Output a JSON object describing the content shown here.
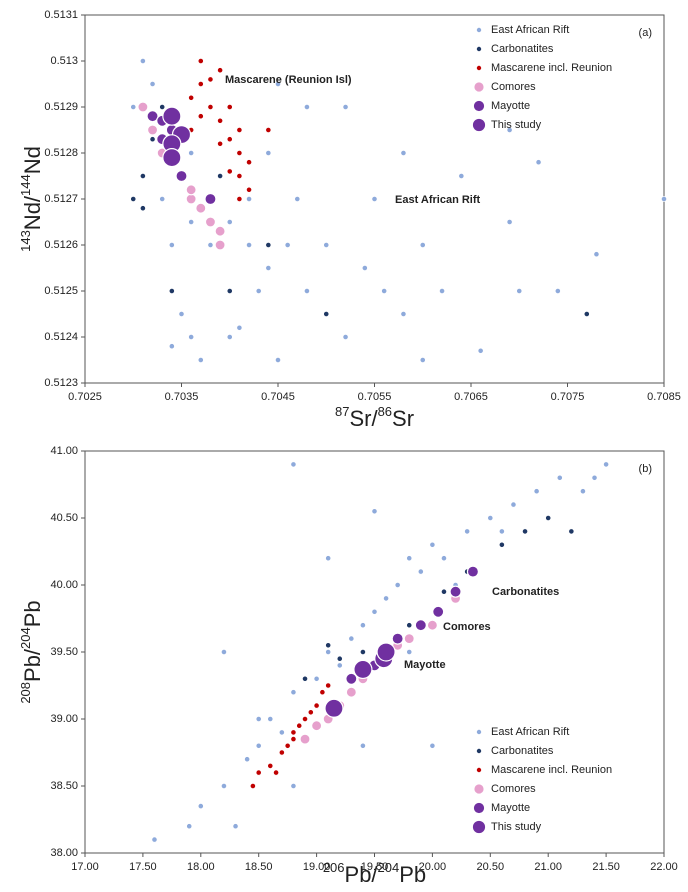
{
  "chart_data": [
    {
      "type": "scatter",
      "label": "(a)",
      "xlabel": [
        "87",
        "Sr/",
        "86",
        "Sr"
      ],
      "ylabel": [
        "143",
        "Nd/",
        "144",
        "Nd"
      ],
      "xlim": [
        0.7025,
        0.7085
      ],
      "xticks": [
        0.7025,
        0.7035,
        0.7045,
        0.7055,
        0.7065,
        0.7075,
        0.7085
      ],
      "ylim": [
        0.5123,
        0.5131
      ],
      "yticks": [
        0.5123,
        0.5124,
        0.5125,
        0.5126,
        0.5127,
        0.5128,
        0.5129,
        0.513,
        0.5131
      ],
      "legend": "upper right",
      "annotations": [
        {
          "text": "Mascarene (Reunion Isl)",
          "color": "#c00000"
        },
        {
          "text": "East African Rift",
          "color": "#8eaadb"
        }
      ],
      "series": [
        {
          "name": "East African Rift",
          "color": "#8eaadb",
          "x": [
            0.7031,
            0.7032,
            0.7034,
            0.7036,
            0.7038,
            0.704,
            0.7042,
            0.7044,
            0.7046,
            0.7048,
            0.705,
            0.7052,
            0.7054,
            0.7056,
            0.7058,
            0.706,
            0.7062,
            0.7066,
            0.707,
            0.7074,
            0.7078,
            0.7085,
            0.7072,
            0.7069,
            0.7064,
            0.7058,
            0.7052,
            0.7048,
            0.7045,
            0.7055,
            0.706,
            0.7069,
            0.704,
            0.7037,
            0.7035,
            0.7034,
            0.7036,
            0.7041,
            0.7043,
            0.7047,
            0.7044,
            0.7039,
            0.7033,
            0.7034,
            0.7045,
            0.705,
            0.7042,
            0.7038,
            0.7036,
            0.703
          ],
          "y": [
            0.513,
            0.51295,
            0.51285,
            0.5128,
            0.5127,
            0.51265,
            0.5126,
            0.51255,
            0.5126,
            0.5125,
            0.51245,
            0.5124,
            0.51255,
            0.5125,
            0.51245,
            0.51235,
            0.5125,
            0.51237,
            0.5125,
            0.5125,
            0.51258,
            0.5127,
            0.51278,
            0.51285,
            0.51275,
            0.5128,
            0.5129,
            0.5129,
            0.51295,
            0.5127,
            0.5126,
            0.51265,
            0.5124,
            0.51235,
            0.51245,
            0.5126,
            0.5124,
            0.51242,
            0.5125,
            0.5127,
            0.5128,
            0.51275,
            0.5127,
            0.51238,
            0.51235,
            0.5126,
            0.5127,
            0.5126,
            0.51265,
            0.5129
          ]
        },
        {
          "name": "Carbonatites",
          "color": "#1f3864",
          "x": [
            0.703,
            0.7031,
            0.7032,
            0.7033,
            0.7031,
            0.7034,
            0.7038,
            0.704,
            0.7044,
            0.705,
            0.7077,
            0.7039,
            0.7036,
            0.7033
          ],
          "y": [
            0.5127,
            0.51275,
            0.51283,
            0.5128,
            0.51268,
            0.5125,
            0.51265,
            0.5125,
            0.5126,
            0.51245,
            0.51245,
            0.51275,
            0.51272,
            0.5129
          ]
        },
        {
          "name": "Mascarene incl. Reunion",
          "color": "#c00000",
          "x": [
            0.7036,
            0.7037,
            0.7038,
            0.7036,
            0.7037,
            0.7038,
            0.7039,
            0.704,
            0.7041,
            0.704,
            0.7041,
            0.7042,
            0.7041,
            0.704,
            0.7042,
            0.7041,
            0.7039,
            0.7044,
            0.7037,
            0.7039
          ],
          "y": [
            0.51292,
            0.51295,
            0.5129,
            0.51285,
            0.51288,
            0.51296,
            0.51287,
            0.51283,
            0.5128,
            0.51276,
            0.51275,
            0.51278,
            0.51285,
            0.5129,
            0.51272,
            0.5127,
            0.51282,
            0.51285,
            0.513,
            0.51298
          ]
        },
        {
          "name": "Comores",
          "color": "#e6a0cc",
          "x": [
            0.7031,
            0.7032,
            0.7033,
            0.7034,
            0.7035,
            0.7036,
            0.7037,
            0.7038,
            0.7039,
            0.7039,
            0.7036,
            0.7032
          ],
          "y": [
            0.5129,
            0.51285,
            0.5128,
            0.51282,
            0.51275,
            0.5127,
            0.51268,
            0.51265,
            0.5126,
            0.51263,
            0.51272,
            0.51288
          ]
        },
        {
          "name": "Mayotte",
          "color": "#7030a0",
          "x": [
            0.7032,
            0.7033,
            0.7034,
            0.7033,
            0.7035,
            0.7038,
            0.7034
          ],
          "y": [
            0.51288,
            0.51283,
            0.5128,
            0.51287,
            0.51275,
            0.5127,
            0.51285
          ]
        },
        {
          "name": "This study",
          "color": "#7030a0",
          "x": [
            0.7034,
            0.7035,
            0.7034,
            0.7034
          ],
          "y": [
            0.51288,
            0.51284,
            0.51282,
            0.51279
          ]
        }
      ]
    },
    {
      "type": "scatter",
      "label": "(b)",
      "xlabel": [
        "206",
        "Pb/",
        "204",
        "Pb"
      ],
      "ylabel": [
        "208",
        "Pb/",
        "204",
        "Pb"
      ],
      "xlim": [
        17,
        22
      ],
      "xticks": [
        {
          "value": 17,
          "label": "17.00"
        },
        {
          "value": 17.5,
          "label": "17.50"
        },
        {
          "value": 18,
          "label": "18.00"
        },
        {
          "value": 18.5,
          "label": "18.50"
        },
        {
          "value": 19,
          "label": "19.00"
        },
        {
          "value": 19.5,
          "label": "19.50"
        },
        {
          "value": 20,
          "label": "20.00"
        },
        {
          "value": 20.5,
          "label": "20.50"
        },
        {
          "value": 21,
          "label": "21.00"
        },
        {
          "value": 21.5,
          "label": "21.50"
        },
        {
          "value": 22,
          "label": "22.00"
        }
      ],
      "ylim": [
        38,
        41
      ],
      "yticks": [
        {
          "value": 38,
          "label": "38.00"
        },
        {
          "value": 38.5,
          "label": "38.50"
        },
        {
          "value": 39,
          "label": "39.00"
        },
        {
          "value": 39.5,
          "label": "39.50"
        },
        {
          "value": 40,
          "label": "40.00"
        },
        {
          "value": 40.5,
          "label": "40.50"
        },
        {
          "value": 41,
          "label": "41.00"
        }
      ],
      "legend": "lower right",
      "annotations": [
        {
          "text": "Carbonatites",
          "color": "#1f3864"
        },
        {
          "text": "Comores",
          "color": "#e6a0cc"
        },
        {
          "text": "Mayotte",
          "color": "#7030a0"
        }
      ],
      "series": [
        {
          "name": "East African Rift",
          "color": "#8eaadb",
          "x": [
            17.6,
            18,
            18.2,
            18.3,
            18.4,
            18.5,
            18.6,
            18.2,
            18.7,
            18.8,
            18.9,
            19,
            19.1,
            19.2,
            19.3,
            19.4,
            19.5,
            19.6,
            19.7,
            19.8,
            19.9,
            20,
            20.1,
            20.3,
            20.5,
            20.7,
            20.9,
            21.1,
            21.3,
            21.5,
            21.4,
            20.2,
            19.5,
            18.8,
            19.1,
            18.5,
            19.4,
            20,
            17.9,
            18.8,
            19.8,
            20.6
          ],
          "y": [
            38.1,
            38.35,
            38.5,
            38.2,
            38.7,
            38.8,
            39,
            39.5,
            38.9,
            39.2,
            39,
            39.3,
            39.5,
            39.4,
            39.6,
            39.7,
            39.8,
            39.9,
            40,
            40.2,
            40.1,
            40.3,
            40.2,
            40.4,
            40.5,
            40.6,
            40.7,
            40.8,
            40.7,
            40.9,
            40.8,
            40,
            40.55,
            40.9,
            40.2,
            39,
            38.8,
            38.8,
            38.2,
            38.5,
            39.5,
            40.4
          ]
        },
        {
          "name": "Carbonatites",
          "color": "#1f3864",
          "x": [
            18.9,
            19.1,
            19.4,
            19.8,
            20.1,
            20.3,
            20.6,
            20.8,
            21,
            21.2,
            19.2
          ],
          "y": [
            39.3,
            39.55,
            39.5,
            39.7,
            39.95,
            40.1,
            40.3,
            40.4,
            40.5,
            40.4,
            39.45
          ]
        },
        {
          "name": "Mascarene incl. Reunion",
          "color": "#c00000",
          "x": [
            18.45,
            18.5,
            18.6,
            18.7,
            18.75,
            18.8,
            18.85,
            18.9,
            18.95,
            19,
            19.05,
            19.1,
            18.65,
            18.8
          ],
          "y": [
            38.5,
            38.6,
            38.65,
            38.75,
            38.8,
            38.9,
            38.95,
            39,
            39.05,
            39.1,
            39.2,
            39.25,
            38.6,
            38.85
          ]
        },
        {
          "name": "Comores",
          "color": "#e6a0cc",
          "x": [
            18.9,
            19,
            19.1,
            19.2,
            19.3,
            19.4,
            19.5,
            19.6,
            19.8,
            20,
            20.2,
            19.7
          ],
          "y": [
            38.85,
            38.95,
            39,
            39.1,
            39.2,
            39.3,
            39.4,
            39.5,
            39.6,
            39.7,
            39.9,
            39.55
          ]
        },
        {
          "name": "Mayotte",
          "color": "#7030a0",
          "x": [
            19.3,
            19.5,
            19.7,
            19.9,
            20.05,
            20.2,
            20.35,
            19.6
          ],
          "y": [
            39.3,
            39.4,
            39.6,
            39.7,
            39.8,
            39.95,
            40.1,
            39.45
          ]
        },
        {
          "name": "This study",
          "color": "#7030a0",
          "x": [
            19.15,
            19.4,
            19.58,
            19.6
          ],
          "y": [
            39.08,
            39.37,
            39.45,
            39.5
          ]
        }
      ]
    }
  ]
}
